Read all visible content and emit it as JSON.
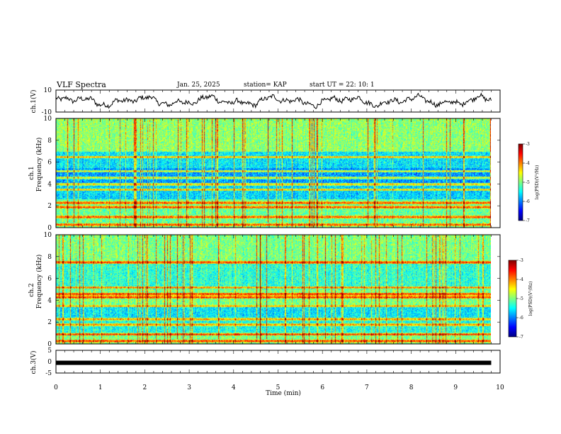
{
  "header": {
    "title": "VLF Spectra",
    "date": "Jan. 25, 2025",
    "station": "station= KAP",
    "start": "start  UT =  22: 10: 1"
  },
  "colors": {
    "colormap": [
      "#00007f",
      "#0000ff",
      "#007fff",
      "#00ffff",
      "#7fff7f",
      "#ffff00",
      "#ff7f00",
      "#ff0000",
      "#7f0000"
    ],
    "line": "#000000"
  },
  "chart_data": [
    {
      "type": "line",
      "name": "ch1-waveform",
      "ylabel": "ch.1(V)",
      "ylim": [
        -10,
        10
      ],
      "yticks": [
        "10",
        "-10"
      ],
      "xlim": [
        0,
        10
      ],
      "x_extent": 9.8,
      "description_values": "voltage waveform oscillating roughly between -6 and 8 V"
    },
    {
      "type": "heatmap",
      "name": "ch1-spectrogram",
      "ylabel_top": "ch.1",
      "ylabel": "Frequency (kHz)",
      "ylim": [
        0,
        10
      ],
      "yticks": [
        "0",
        "2",
        "4",
        "6",
        "8",
        "10"
      ],
      "xlim": [
        0,
        10
      ],
      "x_extent": 9.8,
      "colorbar": {
        "label": "log(PSD)(V²/Hz)",
        "ticks": [
          "-3",
          "-4",
          "-5",
          "-6",
          "-7"
        ],
        "range": [
          -7,
          -3
        ]
      },
      "bands_khz": [
        0.3,
        1.0,
        1.9,
        2.3,
        3.5,
        4.0,
        4.6,
        5.2,
        6.5
      ]
    },
    {
      "type": "heatmap",
      "name": "ch2-spectrogram",
      "ylabel_top": "ch.2",
      "ylabel": "Frequency (kHz)",
      "ylim": [
        0,
        10
      ],
      "yticks": [
        "0",
        "2",
        "4",
        "6",
        "8",
        "10"
      ],
      "xlim": [
        0,
        10
      ],
      "x_extent": 9.8,
      "colorbar": {
        "label": "log(PSD)(V²/Hz)",
        "ticks": [
          "-3",
          "-4",
          "-5",
          "-6",
          "-7"
        ],
        "range": [
          -7,
          -3
        ]
      },
      "bands_khz": [
        0.3,
        0.9,
        1.8,
        2.3,
        3.5,
        4.3,
        4.6,
        5.2,
        7.5
      ]
    },
    {
      "type": "line",
      "name": "ch3-waveform",
      "ylabel": "ch.3(V)",
      "ylim": [
        -5,
        5
      ],
      "yticks": [
        "5",
        "0",
        "-5"
      ],
      "xlim": [
        0,
        10
      ],
      "x_extent": 9.8,
      "level": -0.5
    }
  ],
  "xaxis": {
    "label": "Time (min)",
    "ticks": [
      "0",
      "1",
      "2",
      "3",
      "4",
      "5",
      "6",
      "7",
      "8",
      "9",
      "10"
    ]
  }
}
